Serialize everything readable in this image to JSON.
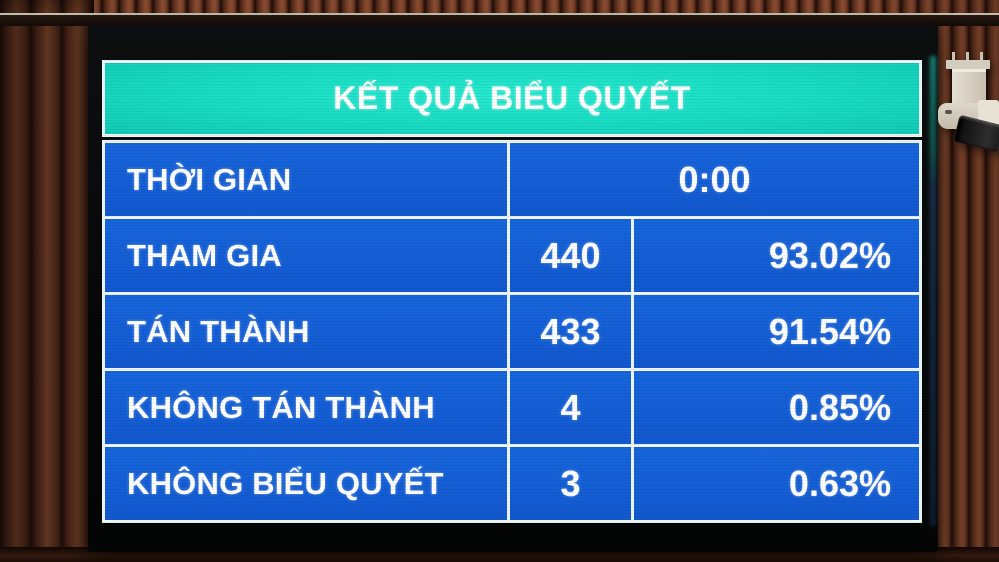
{
  "board": {
    "title": "KẾT QUẢ BIỂU QUYẾT",
    "time_row": {
      "label": "THỜI GIAN",
      "value": "0:00"
    },
    "rows": [
      {
        "label": "THAM GIA",
        "count": "440",
        "percent": "93.02%"
      },
      {
        "label": "TÁN THÀNH",
        "count": "433",
        "percent": "91.54%"
      },
      {
        "label": "KHÔNG TÁN THÀNH",
        "count": "4",
        "percent": "0.85%"
      },
      {
        "label": "KHÔNG BIỂU QUYẾT",
        "count": "3",
        "percent": "0.63%"
      }
    ]
  },
  "colors": {
    "title_teal": "#1adcc2",
    "row_blue": "#1560d6",
    "grid_white": "#eef6f6",
    "text_white": "#ffffff"
  },
  "chart_data": {
    "type": "table",
    "title": "KẾT QUẢ BIỂU QUYẾT",
    "columns": [
      "label",
      "count",
      "percent"
    ],
    "rows": [
      [
        "THỜI GIAN",
        "0:00",
        ""
      ],
      [
        "THAM GIA",
        "440",
        "93.02%"
      ],
      [
        "TÁN THÀNH",
        "433",
        "91.54%"
      ],
      [
        "KHÔNG TÁN THÀNH",
        "4",
        "0.85%"
      ],
      [
        "KHÔNG BIỂU QUYẾT",
        "3",
        "0.63%"
      ]
    ]
  }
}
